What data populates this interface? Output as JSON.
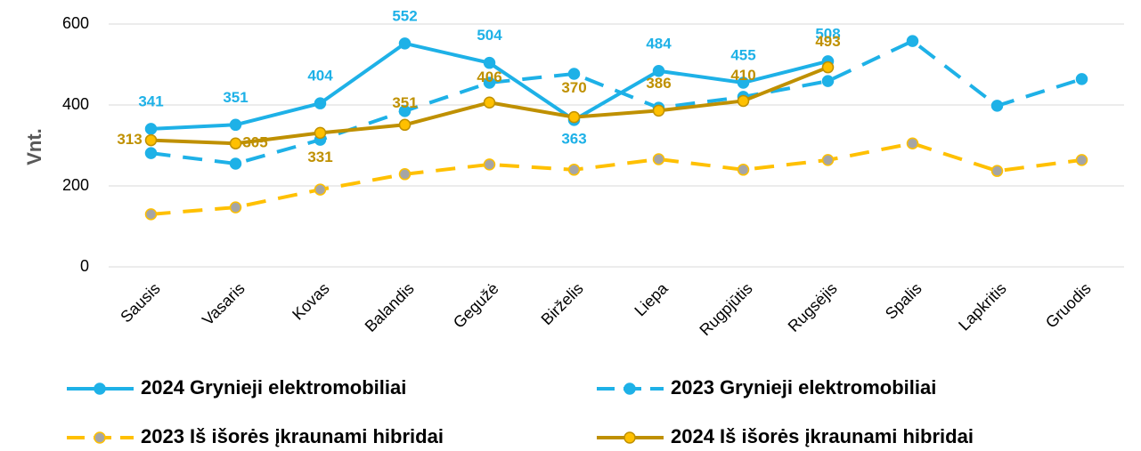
{
  "chart_data": {
    "type": "line",
    "y_label": "Vnt.",
    "categories": [
      "Sausis",
      "Vasaris",
      "Kovas",
      "Balandis",
      "Gegužė",
      "Birželis",
      "Liepa",
      "Rugpjūtis",
      "Rugsėjis",
      "Spalis",
      "Lapkritis",
      "Gruodis"
    ],
    "series": [
      {
        "name": "2024 Grynieji elektromobiliai",
        "color": "#1eb1e7",
        "marker_color": "#1eb1e7",
        "dashed": false,
        "data_labels": true,
        "values": [
          341,
          351,
          404,
          552,
          504,
          363,
          484,
          455,
          508,
          null,
          null,
          null
        ]
      },
      {
        "name": "2023 Grynieji elektromobiliai",
        "color": "#1eb1e7",
        "marker_color": "#1eb1e7",
        "dashed": true,
        "data_labels": false,
        "values": [
          281,
          255,
          314,
          385,
          455,
          477,
          393,
          420,
          459,
          558,
          398,
          464
        ]
      },
      {
        "name": "2023 Iš išorės įkraunami hibridai",
        "color": "#ffc000",
        "marker_color": "#a5a5a5",
        "dashed": true,
        "data_labels": false,
        "values": [
          130,
          147,
          191,
          229,
          253,
          240,
          266,
          240,
          264,
          305,
          237,
          264
        ]
      },
      {
        "name": "2024 Iš išorės įkraunami hibridai",
        "color": "#bf9000",
        "marker_color": "#ffc000",
        "dashed": false,
        "data_labels": true,
        "values": [
          313,
          305,
          331,
          351,
          406,
          370,
          386,
          410,
          493,
          null,
          null,
          null
        ]
      }
    ],
    "ylim": [
      0,
      600
    ],
    "yticks": [
      0,
      200,
      400,
      600
    ],
    "grid": true
  }
}
